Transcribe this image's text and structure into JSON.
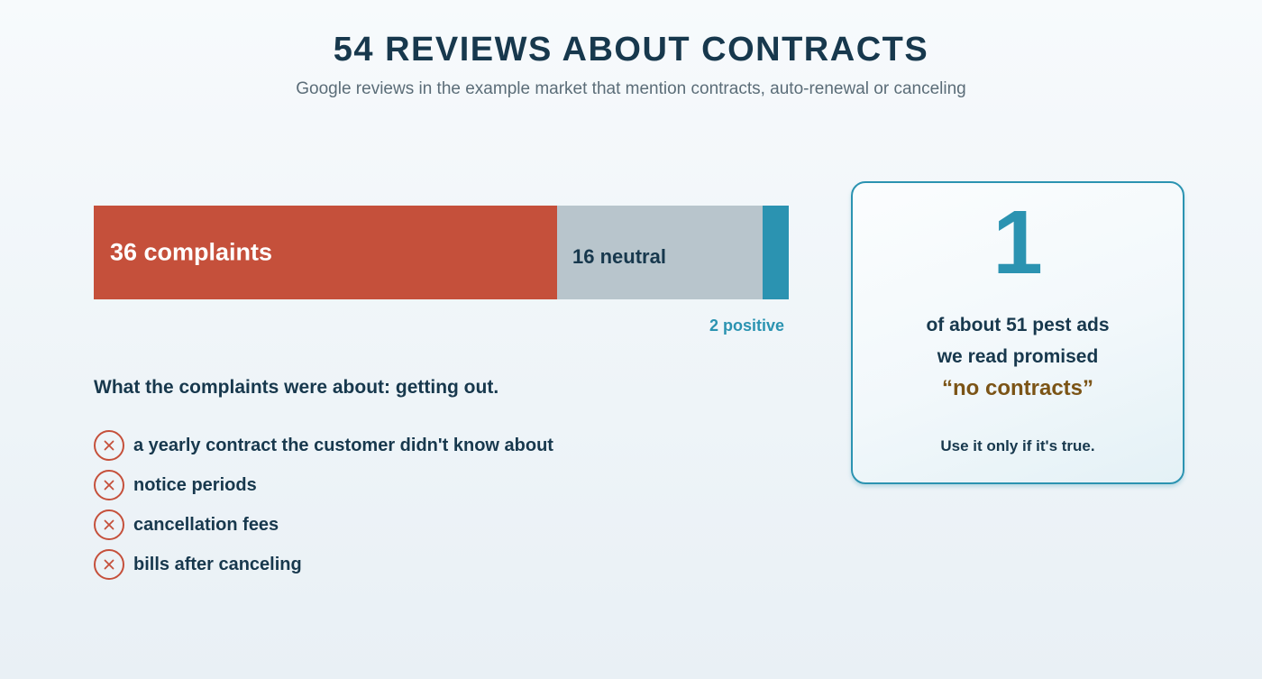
{
  "header": {
    "title": "54 REVIEWS ABOUT CONTRACTS",
    "subtitle": "Google reviews in the example market that mention contracts, auto-renewal or canceling"
  },
  "chart_data": {
    "type": "bar",
    "orientation": "horizontal-stacked",
    "total": 54,
    "segments": [
      {
        "name": "complaints",
        "value": 36,
        "label": "36 complaints",
        "color": "#c5503b"
      },
      {
        "name": "neutral",
        "value": 16,
        "label": "16 neutral",
        "color": "#b8c5cc"
      },
      {
        "name": "positive",
        "value": 2,
        "label": "2 positive",
        "color": "#2b93b1"
      }
    ]
  },
  "complaints": {
    "heading": "What the complaints were about: getting out.",
    "icon": "x-circle-icon",
    "items": [
      "a yearly contract the customer didn't know about",
      "notice periods",
      "cancellation fees",
      "bills after canceling"
    ]
  },
  "callout": {
    "number": "1",
    "line1": "of about 51 pest ads",
    "line2": "we read promised",
    "quote": "“no contracts”",
    "footnote": "Use it only if it's true."
  },
  "colors": {
    "text": "#17384d",
    "accent": "#2b93b1",
    "complaint": "#c5503b",
    "neutral": "#b8c5cc",
    "quote": "#7b5416"
  }
}
